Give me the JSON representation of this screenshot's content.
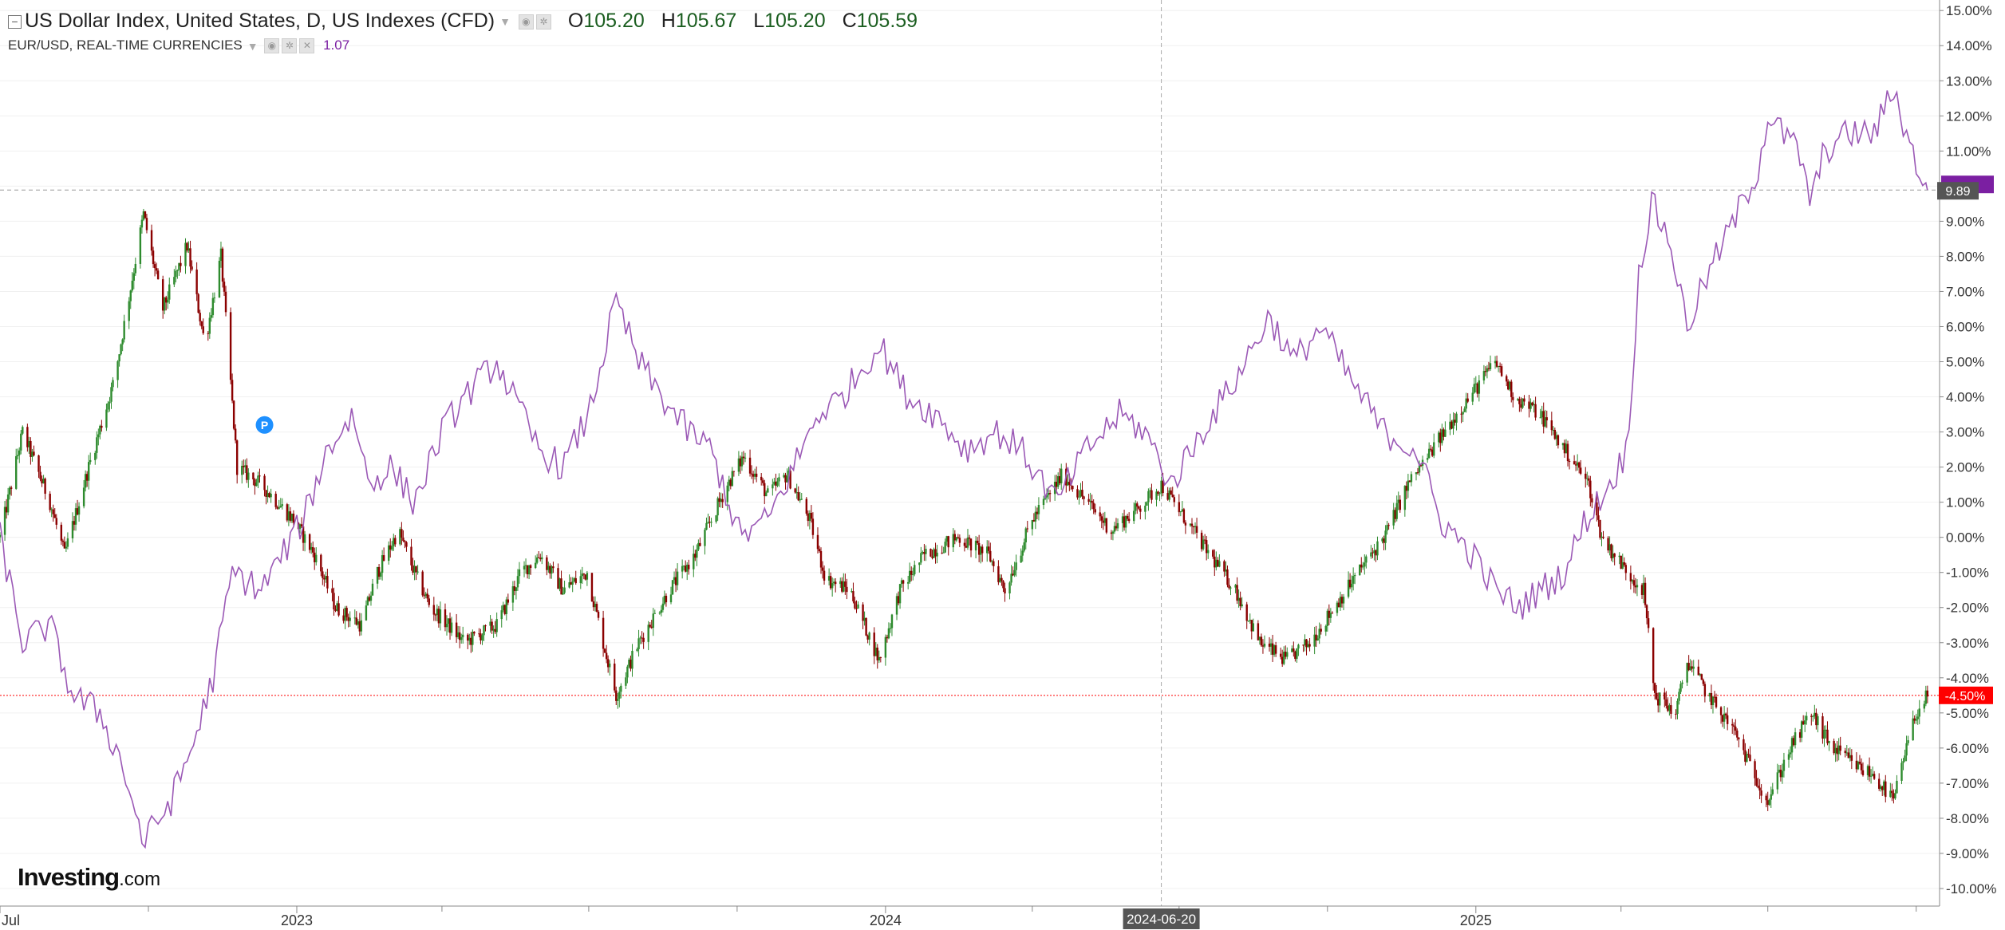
{
  "legend": {
    "main_title": "US Dollar Index, United States, D, US Indexes (CFD)",
    "o_label": "O",
    "o_value": "105.20",
    "h_label": "H",
    "h_value": "105.67",
    "l_label": "L",
    "l_value": "105.20",
    "c_label": "C",
    "c_value": "105.59",
    "sub_title": "EUR/USD, REAL-TIME CURRENCIES",
    "sub_value": "1.07"
  },
  "branding": {
    "name": "Investing",
    "suffix": ".com"
  },
  "colors": {
    "up": "#2e8b2e",
    "down": "#8b0000",
    "line": "#9b59b6",
    "price_line_red": "#ff0000",
    "tag_purple": "#7b1fa2",
    "tag_gray": "#555555",
    "grid": "#f0f0f0"
  },
  "chart_data": {
    "type": "candlestick + line (percent comparison)",
    "y_axis": {
      "unit": "%",
      "range": [
        -10.5,
        15.3
      ],
      "ticks": [
        "15.00%",
        "14.00%",
        "13.00%",
        "12.00%",
        "11.00%",
        "10.00%",
        "9.00%",
        "8.00%",
        "7.00%",
        "6.00%",
        "5.00%",
        "4.00%",
        "3.00%",
        "2.00%",
        "1.00%",
        "0.00%",
        "-1.00%",
        "-2.00%",
        "-3.00%",
        "-4.00%",
        "-5.00%",
        "-6.00%",
        "-7.00%",
        "-8.00%",
        "-9.00%",
        "-10.00%"
      ],
      "tick_values": [
        15,
        14,
        13,
        12,
        11,
        10,
        9,
        8,
        7,
        6,
        5,
        4,
        3,
        2,
        1,
        0,
        -1,
        -2,
        -3,
        -4,
        -5,
        -6,
        -7,
        -8,
        -9,
        -10
      ]
    },
    "x_axis": {
      "range": [
        "2022-07-01",
        "2025-10-15"
      ],
      "labels": [
        {
          "text": "Jul",
          "date": "2022-07-01"
        },
        {
          "text": "2023",
          "date": "2023-01-01"
        },
        {
          "text": "2024",
          "date": "2024-01-01"
        },
        {
          "text": "2025",
          "date": "2025-01-01"
        }
      ],
      "minor_tick_dates": [
        "2022-10-01",
        "2023-04-01",
        "2023-07-01",
        "2023-10-01",
        "2024-04-01",
        "2024-07-01",
        "2024-10-01",
        "2025-04-01",
        "2025-07-01",
        "2025-10-01"
      ],
      "crosshair": {
        "text": "2024-06-20",
        "date": "2024-06-20"
      }
    },
    "series": [
      {
        "name": "US Dollar Index",
        "style": "candlestick",
        "last_value_label": "-4.50%",
        "last_value": -4.5,
        "points": [
          [
            "2022-07-01",
            0.0
          ],
          [
            "2022-07-15",
            3.0
          ],
          [
            "2022-08-01",
            1.0
          ],
          [
            "2022-08-10",
            -0.5
          ],
          [
            "2022-08-25",
            2.0
          ],
          [
            "2022-09-10",
            4.5
          ],
          [
            "2022-09-28",
            9.2
          ],
          [
            "2022-10-10",
            6.5
          ],
          [
            "2022-10-25",
            8.3
          ],
          [
            "2022-11-05",
            5.5
          ],
          [
            "2022-11-15",
            8.0
          ],
          [
            "2022-11-25",
            2.0
          ],
          [
            "2022-12-10",
            1.5
          ],
          [
            "2022-12-30",
            0.5
          ],
          [
            "2023-01-12",
            -0.5
          ],
          [
            "2023-01-25",
            -2.0
          ],
          [
            "2023-02-10",
            -2.5
          ],
          [
            "2023-02-20",
            -1.0
          ],
          [
            "2023-03-05",
            0.2
          ],
          [
            "2023-03-15",
            -1.0
          ],
          [
            "2023-03-25",
            -2.0
          ],
          [
            "2023-04-05",
            -2.5
          ],
          [
            "2023-04-15",
            -3.0
          ],
          [
            "2023-05-05",
            -2.5
          ],
          [
            "2023-05-20",
            -1.0
          ],
          [
            "2023-06-01",
            -0.5
          ],
          [
            "2023-06-15",
            -1.5
          ],
          [
            "2023-06-30",
            -1.0
          ],
          [
            "2023-07-10",
            -3.0
          ],
          [
            "2023-07-18",
            -4.5
          ],
          [
            "2023-08-01",
            -3.0
          ],
          [
            "2023-08-20",
            -1.5
          ],
          [
            "2023-09-05",
            -0.5
          ],
          [
            "2023-09-25",
            1.5
          ],
          [
            "2023-10-05",
            2.3
          ],
          [
            "2023-10-20",
            1.2
          ],
          [
            "2023-11-01",
            1.8
          ],
          [
            "2023-11-15",
            0.5
          ],
          [
            "2023-11-25",
            -1.2
          ],
          [
            "2023-12-10",
            -1.5
          ],
          [
            "2023-12-28",
            -3.5
          ],
          [
            "2024-01-10",
            -1.5
          ],
          [
            "2024-01-25",
            -0.5
          ],
          [
            "2024-02-15",
            0.0
          ],
          [
            "2024-03-05",
            -0.5
          ],
          [
            "2024-03-15",
            -1.5
          ],
          [
            "2024-04-01",
            0.5
          ],
          [
            "2024-04-20",
            1.8
          ],
          [
            "2024-05-05",
            1.0
          ],
          [
            "2024-05-20",
            0.2
          ],
          [
            "2024-06-05",
            0.8
          ],
          [
            "2024-06-20",
            1.5
          ],
          [
            "2024-07-05",
            0.5
          ],
          [
            "2024-07-20",
            -0.5
          ],
          [
            "2024-08-05",
            -1.5
          ],
          [
            "2024-08-20",
            -3.0
          ],
          [
            "2024-09-05",
            -3.5
          ],
          [
            "2024-09-20",
            -3.0
          ],
          [
            "2024-10-05",
            -2.0
          ],
          [
            "2024-10-20",
            -1.0
          ],
          [
            "2024-11-05",
            0.0
          ],
          [
            "2024-11-20",
            1.5
          ],
          [
            "2024-12-05",
            2.5
          ],
          [
            "2024-12-20",
            3.5
          ],
          [
            "2025-01-05",
            4.5
          ],
          [
            "2025-01-13",
            5.0
          ],
          [
            "2025-01-25",
            4.0
          ],
          [
            "2025-02-10",
            3.5
          ],
          [
            "2025-02-25",
            2.5
          ],
          [
            "2025-03-05",
            2.0
          ],
          [
            "2025-03-12",
            1.5
          ],
          [
            "2025-03-20",
            0.0
          ],
          [
            "2025-04-05",
            -1.0
          ],
          [
            "2025-04-15",
            -1.5
          ],
          [
            "2025-04-22",
            -4.5
          ],
          [
            "2025-05-05",
            -5.0
          ],
          [
            "2025-05-12",
            -3.5
          ],
          [
            "2025-05-25",
            -4.5
          ],
          [
            "2025-06-10",
            -5.5
          ],
          [
            "2025-06-20",
            -6.5
          ],
          [
            "2025-07-01",
            -7.5
          ],
          [
            "2025-07-15",
            -6.0
          ],
          [
            "2025-07-28",
            -5.0
          ],
          [
            "2025-08-10",
            -6.0
          ],
          [
            "2025-08-25",
            -6.5
          ],
          [
            "2025-09-05",
            -6.8
          ],
          [
            "2025-09-17",
            -7.5
          ],
          [
            "2025-09-25",
            -6.0
          ],
          [
            "2025-10-01",
            -5.0
          ],
          [
            "2025-10-08",
            -4.5
          ]
        ]
      },
      {
        "name": "EUR/USD",
        "style": "line",
        "last_value_label": "9.89",
        "last_value": 9.89,
        "points": [
          [
            "2022-07-01",
            0.0
          ],
          [
            "2022-07-15",
            -3.0
          ],
          [
            "2022-08-01",
            -2.5
          ],
          [
            "2022-08-15",
            -4.5
          ],
          [
            "2022-09-01",
            -5.0
          ],
          [
            "2022-09-15",
            -6.5
          ],
          [
            "2022-09-28",
            -8.7
          ],
          [
            "2022-10-15",
            -7.5
          ],
          [
            "2022-10-28",
            -6.0
          ],
          [
            "2022-11-10",
            -4.0
          ],
          [
            "2022-11-22",
            -1.0
          ],
          [
            "2022-12-10",
            -1.5
          ],
          [
            "2023-01-05",
            0.5
          ],
          [
            "2023-01-20",
            2.5
          ],
          [
            "2023-02-05",
            3.5
          ],
          [
            "2023-02-15",
            1.5
          ],
          [
            "2023-02-28",
            2.0
          ],
          [
            "2023-03-15",
            1.0
          ],
          [
            "2023-04-01",
            3.0
          ],
          [
            "2023-04-15",
            4.0
          ],
          [
            "2023-05-05",
            5.0
          ],
          [
            "2023-05-15",
            4.0
          ],
          [
            "2023-05-31",
            2.5
          ],
          [
            "2023-06-15",
            2.0
          ],
          [
            "2023-07-01",
            3.5
          ],
          [
            "2023-07-18",
            6.7
          ],
          [
            "2023-08-01",
            5.0
          ],
          [
            "2023-08-15",
            4.0
          ],
          [
            "2023-09-01",
            3.0
          ],
          [
            "2023-09-15",
            2.5
          ],
          [
            "2023-10-03",
            0.0
          ],
          [
            "2023-10-20",
            0.5
          ],
          [
            "2023-11-05",
            2.0
          ],
          [
            "2023-11-20",
            3.5
          ],
          [
            "2023-12-05",
            4.0
          ],
          [
            "2023-12-28",
            5.5
          ],
          [
            "2024-01-15",
            4.0
          ],
          [
            "2024-02-01",
            3.5
          ],
          [
            "2024-02-20",
            2.5
          ],
          [
            "2024-03-10",
            3.0
          ],
          [
            "2024-03-25",
            2.5
          ],
          [
            "2024-04-16",
            1.0
          ],
          [
            "2024-05-05",
            2.5
          ],
          [
            "2024-05-25",
            3.5
          ],
          [
            "2024-06-10",
            3.0
          ],
          [
            "2024-06-26",
            1.5
          ],
          [
            "2024-07-15",
            3.0
          ],
          [
            "2024-08-05",
            4.5
          ],
          [
            "2024-08-26",
            6.3
          ],
          [
            "2024-09-10",
            5.0
          ],
          [
            "2024-09-27",
            6.0
          ],
          [
            "2024-10-15",
            4.5
          ],
          [
            "2024-11-05",
            3.0
          ],
          [
            "2024-11-25",
            2.5
          ],
          [
            "2024-12-10",
            0.5
          ],
          [
            "2024-12-30",
            -0.5
          ],
          [
            "2025-01-13",
            -1.5
          ],
          [
            "2025-01-28",
            -2.0
          ],
          [
            "2025-02-10",
            -1.5
          ],
          [
            "2025-02-25",
            -1.0
          ],
          [
            "2025-03-10",
            0.5
          ],
          [
            "2025-03-25",
            1.5
          ],
          [
            "2025-04-05",
            2.5
          ],
          [
            "2025-04-12",
            7.5
          ],
          [
            "2025-04-20",
            9.5
          ],
          [
            "2025-05-01",
            8.5
          ],
          [
            "2025-05-12",
            6.0
          ],
          [
            "2025-05-25",
            7.5
          ],
          [
            "2025-06-10",
            9.0
          ],
          [
            "2025-06-25",
            10.5
          ],
          [
            "2025-07-01",
            12.0
          ],
          [
            "2025-07-10",
            11.5
          ],
          [
            "2025-07-20",
            11.0
          ],
          [
            "2025-07-28",
            9.5
          ],
          [
            "2025-08-05",
            11.0
          ],
          [
            "2025-08-20",
            11.5
          ],
          [
            "2025-09-05",
            11.5
          ],
          [
            "2025-09-17",
            12.8
          ],
          [
            "2025-09-28",
            11.0
          ],
          [
            "2025-10-08",
            9.89
          ]
        ]
      }
    ],
    "annotations": [
      {
        "type": "marker",
        "text": "P",
        "date": "2022-12-12",
        "value": 3.2
      }
    ]
  }
}
